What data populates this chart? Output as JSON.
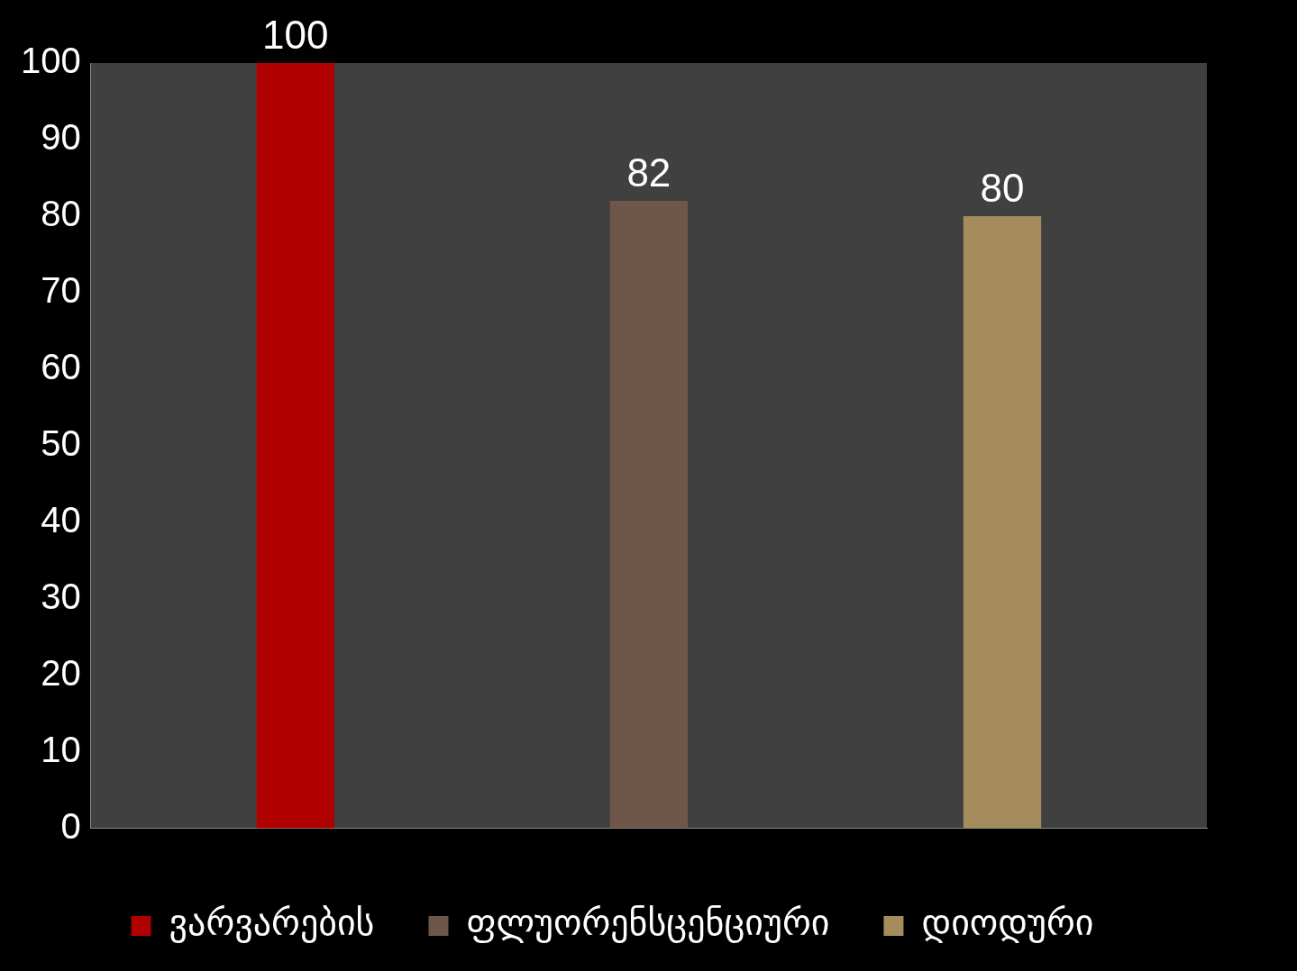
{
  "chart_data": {
    "type": "bar",
    "categories": [
      null
    ],
    "series": [
      {
        "name": "ვარვარების",
        "color": "#b00000",
        "values": [
          100
        ]
      },
      {
        "name": "ფლუორენსცენციური",
        "color": "#6e5648",
        "values": [
          82
        ]
      },
      {
        "name": "დიოდური",
        "color": "#a48c5c",
        "values": [
          80
        ]
      }
    ],
    "ylim": [
      0,
      100
    ],
    "yticks": [
      0,
      10,
      20,
      30,
      40,
      50,
      60,
      70,
      80,
      90,
      100
    ],
    "grid": false,
    "legend": "bottom",
    "data_labels": true
  }
}
